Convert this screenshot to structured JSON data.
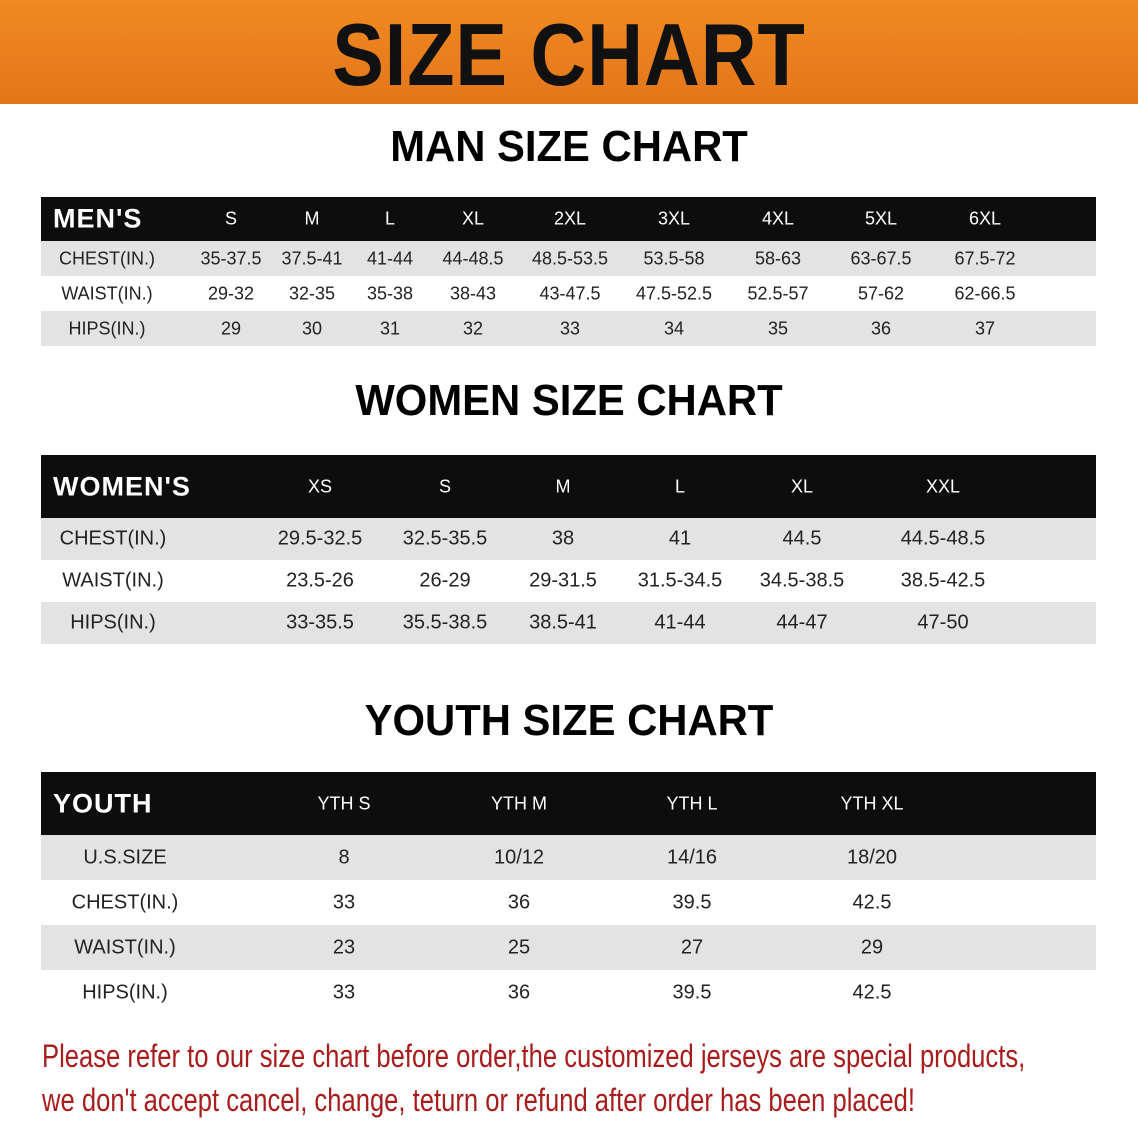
{
  "banner": {
    "title": "SIZE CHART",
    "color": "#e87c1d"
  },
  "men": {
    "title": "MAN SIZE CHART",
    "header": [
      "MEN'S",
      "S",
      "M",
      "L",
      "XL",
      "2XL",
      "3XL",
      "4XL",
      "5XL",
      "6XL"
    ],
    "rows": [
      [
        "CHEST(IN.)",
        "35-37.5",
        "37.5-41",
        "41-44",
        "44-48.5",
        "48.5-53.5",
        "53.5-58",
        "58-63",
        "63-67.5",
        "67.5-72"
      ],
      [
        "WAIST(IN.)",
        "29-32",
        "32-35",
        "35-38",
        "38-43",
        "43-47.5",
        "47.5-52.5",
        "52.5-57",
        "57-62",
        "62-66.5"
      ],
      [
        "HIPS(IN.)",
        "29",
        "30",
        "31",
        "32",
        "33",
        "34",
        "35",
        "36",
        "37"
      ]
    ]
  },
  "women": {
    "title": "WOMEN SIZE CHART",
    "header": [
      "WOMEN'S",
      "XS",
      "S",
      "M",
      "L",
      "XL",
      "XXL"
    ],
    "rows": [
      [
        "CHEST(IN.)",
        "29.5-32.5",
        "32.5-35.5",
        "38",
        "41",
        "44.5",
        "44.5-48.5"
      ],
      [
        "WAIST(IN.)",
        "23.5-26",
        "26-29",
        "29-31.5",
        "31.5-34.5",
        "34.5-38.5",
        "38.5-42.5"
      ],
      [
        "HIPS(IN.)",
        "33-35.5",
        "35.5-38.5",
        "38.5-41",
        "41-44",
        "44-47",
        "47-50"
      ]
    ]
  },
  "youth": {
    "title": "YOUTH SIZE CHART",
    "header": [
      "YOUTH",
      "YTH S",
      "YTH M",
      "YTH L",
      "YTH XL"
    ],
    "rows": [
      [
        "U.S.SIZE",
        "8",
        "10/12",
        "14/16",
        "18/20"
      ],
      [
        "CHEST(IN.)",
        "33",
        "36",
        "39.5",
        "42.5"
      ],
      [
        "WAIST(IN.)",
        "23",
        "25",
        "27",
        "29"
      ],
      [
        "HIPS(IN.)",
        "33",
        "36",
        "39.5",
        "42.5"
      ]
    ]
  },
  "notice": {
    "line1": "Please refer to our size chart before order,the customized jerseys are special products,",
    "line2": "we don't accept cancel, change, teturn or refund after order has been placed!",
    "color": "#a81c1c"
  }
}
